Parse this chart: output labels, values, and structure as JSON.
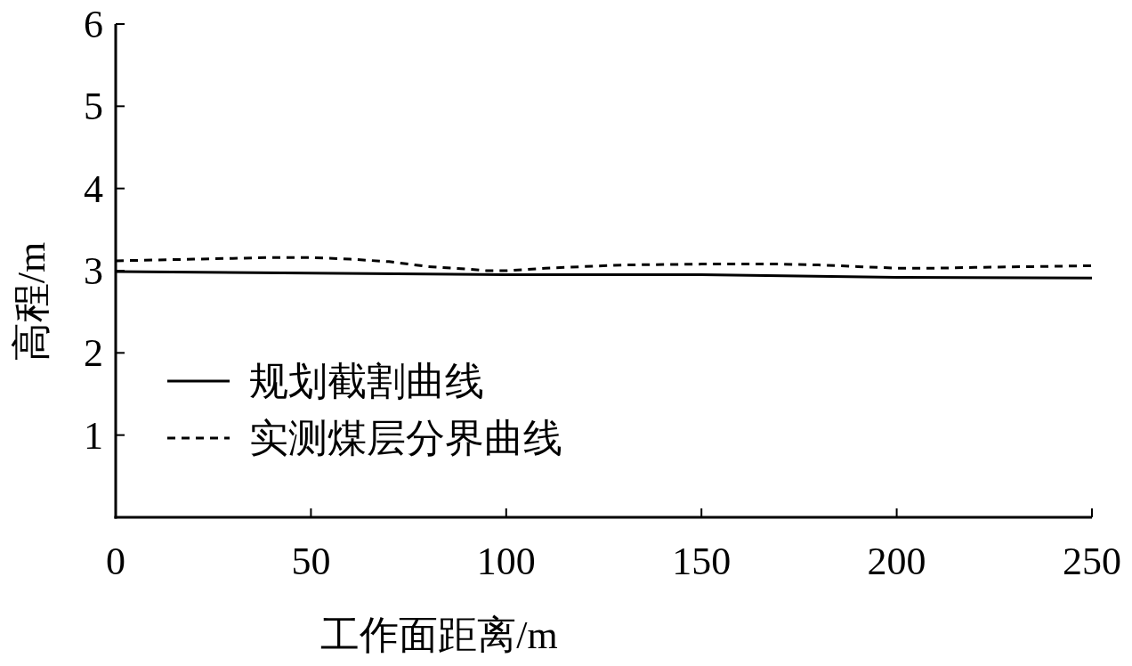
{
  "chart_data": {
    "type": "line",
    "xlabel": "工作面距离/m",
    "ylabel": "高程/m",
    "xlim": [
      0,
      250
    ],
    "ylim": [
      0,
      6
    ],
    "xticks": [
      0,
      50,
      100,
      150,
      200,
      250
    ],
    "yticks": [
      1,
      2,
      3,
      4,
      5,
      6
    ],
    "legend": "bottom left",
    "grid": false,
    "marker": "none",
    "series": [
      {
        "name": "规划截割曲线",
        "color": "#000000",
        "line_style": "solid",
        "x": [
          0,
          50,
          100,
          150,
          200,
          250
        ],
        "values": [
          2.99,
          2.97,
          2.95,
          2.95,
          2.92,
          2.91
        ]
      },
      {
        "name": "实测煤层分界曲线",
        "color": "#000000",
        "line_style": "dashed",
        "x": [
          0,
          10,
          20,
          30,
          40,
          50,
          60,
          70,
          80,
          90,
          95,
          100,
          110,
          120,
          130,
          150,
          170,
          180,
          190,
          200,
          210,
          220,
          235,
          250
        ],
        "values": [
          3.12,
          3.13,
          3.14,
          3.15,
          3.16,
          3.16,
          3.14,
          3.11,
          3.05,
          3.02,
          3.0,
          3.0,
          3.03,
          3.05,
          3.07,
          3.08,
          3.08,
          3.07,
          3.05,
          3.03,
          3.03,
          3.04,
          3.05,
          3.06
        ]
      }
    ]
  }
}
